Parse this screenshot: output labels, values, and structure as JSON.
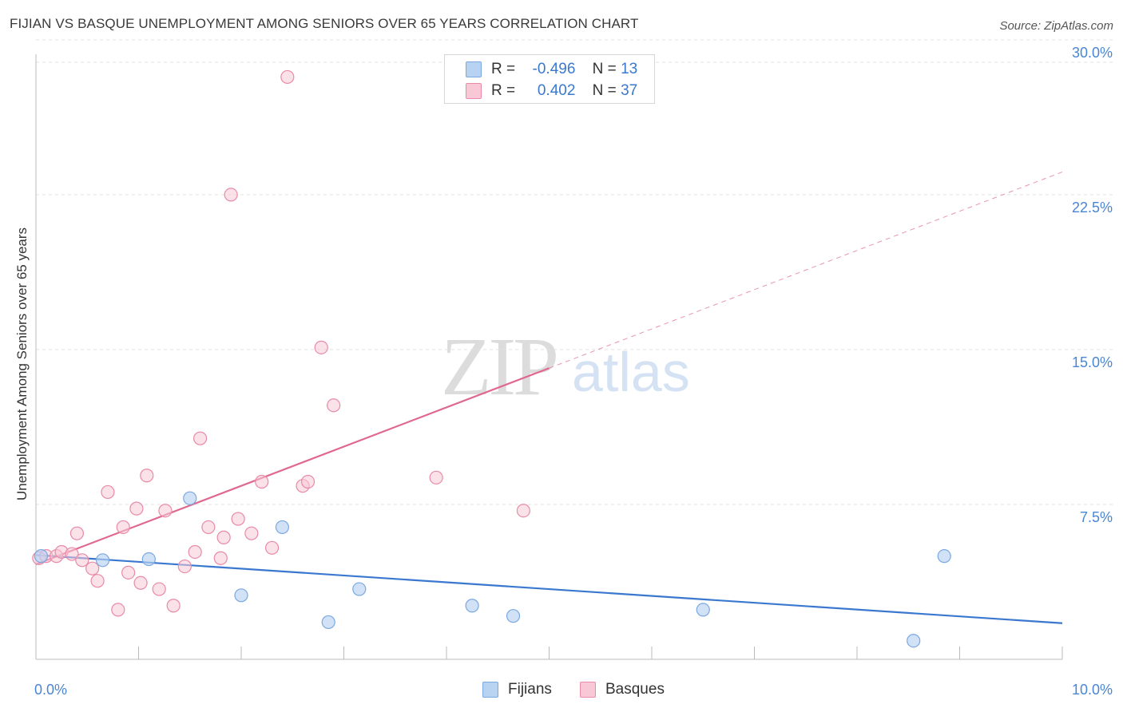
{
  "title": "FIJIAN VS BASQUE UNEMPLOYMENT AMONG SENIORS OVER 65 YEARS CORRELATION CHART",
  "source": "Source: ZipAtlas.com",
  "watermark": {
    "zip": "ZIP",
    "atlas": "atlas"
  },
  "legend": {
    "r_label": "R =",
    "n_label": "N =",
    "fijians": {
      "r": "-0.496",
      "n": "13"
    },
    "basques": {
      "r": "0.402",
      "n": "37"
    }
  },
  "bottom_legend": {
    "fijians": "Fijians",
    "basques": "Basques"
  },
  "colors": {
    "fijians_fill": "#b8d2f2",
    "fijians_stroke": "#7aa8e0",
    "fijians_line": "#3a78d0",
    "basques_fill": "#f8c8d6",
    "basques_stroke": "#e88aa8",
    "basques_line": "#e06890",
    "tick_text": "#4a86d4",
    "grid": "#e2e2e2"
  },
  "chart_data": {
    "type": "scatter",
    "title": "FIJIAN VS BASQUE UNEMPLOYMENT AMONG SENIORS OVER 65 YEARS CORRELATION CHART",
    "xlabel": "",
    "ylabel": "Unemployment Among Seniors over 65 years",
    "xlim": [
      0,
      10
    ],
    "ylim": [
      0,
      31
    ],
    "x_tick_labels": [
      "0.0%",
      "10.0%"
    ],
    "y_ticks": [
      7.5,
      15.0,
      22.5,
      30.0
    ],
    "y_tick_labels": [
      "7.5%",
      "15.0%",
      "22.5%",
      "30.0%"
    ],
    "grid": true,
    "legend_position": "top-center",
    "series": [
      {
        "name": "Fijians",
        "points": [
          {
            "x": 0.05,
            "y": 5.0
          },
          {
            "x": 0.65,
            "y": 4.8
          },
          {
            "x": 1.1,
            "y": 4.85
          },
          {
            "x": 1.5,
            "y": 7.8
          },
          {
            "x": 2.0,
            "y": 3.1
          },
          {
            "x": 2.4,
            "y": 6.4
          },
          {
            "x": 2.85,
            "y": 1.8
          },
          {
            "x": 3.15,
            "y": 3.4
          },
          {
            "x": 4.25,
            "y": 2.6
          },
          {
            "x": 4.65,
            "y": 2.1
          },
          {
            "x": 6.5,
            "y": 2.4
          },
          {
            "x": 8.55,
            "y": 0.9
          },
          {
            "x": 8.85,
            "y": 5.0
          }
        ],
        "trend": {
          "x": [
            0.0,
            10.0
          ],
          "y": [
            5.05,
            1.75
          ],
          "dashed_from": null
        }
      },
      {
        "name": "Basques",
        "points": [
          {
            "x": 0.03,
            "y": 4.9
          },
          {
            "x": 0.1,
            "y": 5.0
          },
          {
            "x": 0.2,
            "y": 5.0
          },
          {
            "x": 0.25,
            "y": 5.2
          },
          {
            "x": 0.35,
            "y": 5.1
          },
          {
            "x": 0.4,
            "y": 6.1
          },
          {
            "x": 0.45,
            "y": 4.8
          },
          {
            "x": 0.55,
            "y": 4.4
          },
          {
            "x": 0.6,
            "y": 3.8
          },
          {
            "x": 0.7,
            "y": 8.1
          },
          {
            "x": 0.8,
            "y": 2.4
          },
          {
            "x": 0.85,
            "y": 6.4
          },
          {
            "x": 0.9,
            "y": 4.2
          },
          {
            "x": 0.98,
            "y": 7.3
          },
          {
            "x": 1.02,
            "y": 3.7
          },
          {
            "x": 1.08,
            "y": 8.9
          },
          {
            "x": 1.2,
            "y": 3.4
          },
          {
            "x": 1.26,
            "y": 7.2
          },
          {
            "x": 1.34,
            "y": 2.6
          },
          {
            "x": 1.45,
            "y": 4.5
          },
          {
            "x": 1.55,
            "y": 5.2
          },
          {
            "x": 1.6,
            "y": 10.7
          },
          {
            "x": 1.68,
            "y": 6.4
          },
          {
            "x": 1.8,
            "y": 4.9
          },
          {
            "x": 1.83,
            "y": 5.9
          },
          {
            "x": 1.9,
            "y": 22.5
          },
          {
            "x": 1.97,
            "y": 6.8
          },
          {
            "x": 2.1,
            "y": 6.1
          },
          {
            "x": 2.2,
            "y": 8.6
          },
          {
            "x": 2.3,
            "y": 5.4
          },
          {
            "x": 2.45,
            "y": 28.2
          },
          {
            "x": 2.6,
            "y": 8.4
          },
          {
            "x": 2.65,
            "y": 8.6
          },
          {
            "x": 2.78,
            "y": 15.1
          },
          {
            "x": 2.9,
            "y": 12.3
          },
          {
            "x": 3.9,
            "y": 8.8
          },
          {
            "x": 4.75,
            "y": 7.2
          }
        ],
        "trend": {
          "x": [
            0.0,
            10.0
          ],
          "y": [
            4.6,
            23.6
          ],
          "dashed_from": 5.0
        }
      }
    ]
  }
}
